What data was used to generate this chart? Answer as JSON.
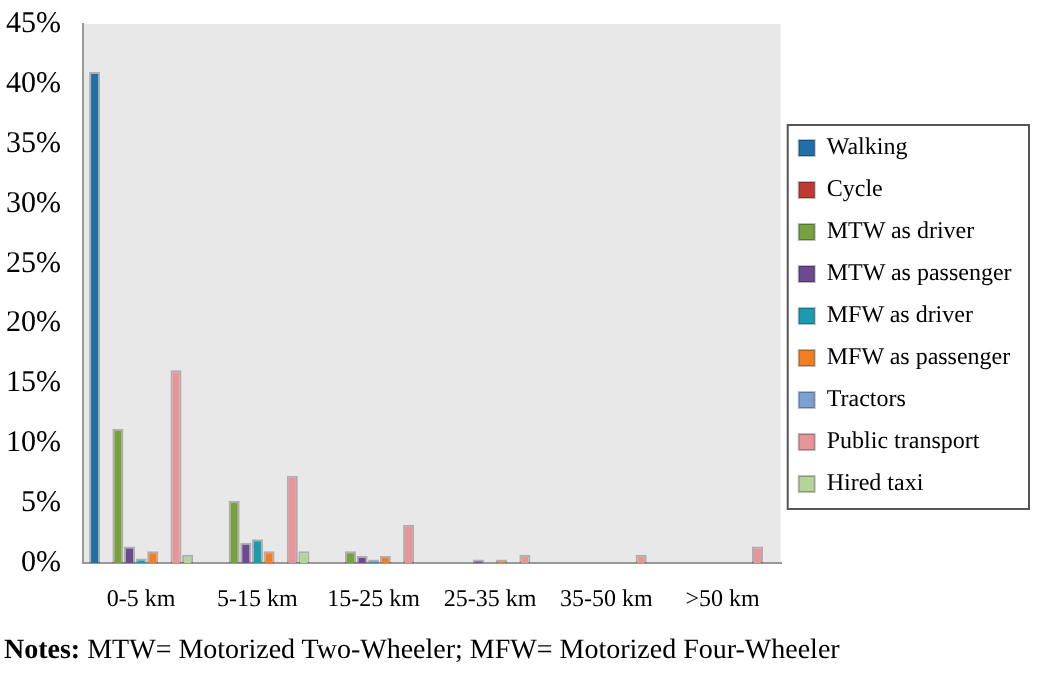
{
  "chart_data": {
    "type": "bar",
    "categories": [
      "0-5 km",
      "5-15 km",
      "15-25 km",
      "25-35 km",
      "35-50 km",
      ">50 km"
    ],
    "series": [
      {
        "name": "Walking",
        "color": "#1f6fa8",
        "values": [
          41,
          0,
          0,
          0,
          0,
          0
        ]
      },
      {
        "name": "Cycle",
        "color": "#be3a34",
        "values": [
          0,
          0,
          0,
          0,
          0,
          0
        ]
      },
      {
        "name": "MTW as driver",
        "color": "#77a03f",
        "values": [
          11.2,
          5.2,
          1,
          0,
          0,
          0
        ]
      },
      {
        "name": "MTW as passenger",
        "color": "#6b4a8f",
        "values": [
          1.4,
          1.7,
          0.6,
          0.3,
          0,
          0
        ]
      },
      {
        "name": "MFW as driver",
        "color": "#1a9bb0",
        "values": [
          0.4,
          2,
          0.3,
          0,
          0,
          0
        ]
      },
      {
        "name": "MFW as passenger",
        "color": "#f07f22",
        "values": [
          1,
          1,
          0.6,
          0.3,
          0,
          0
        ]
      },
      {
        "name": "Tractors",
        "color": "#7a9fd0",
        "values": [
          0,
          0,
          0,
          0,
          0,
          0
        ]
      },
      {
        "name": "Public transport",
        "color": "#e8959a",
        "values": [
          16.1,
          7.3,
          3.2,
          0.7,
          0.7,
          1.4
        ]
      },
      {
        "name": "Hired taxi",
        "color": "#b5d49a",
        "values": [
          0.7,
          1,
          0,
          0,
          0,
          0
        ]
      }
    ],
    "ylim": [
      0,
      45
    ],
    "yticks": [
      {
        "value": 0,
        "label": "0%"
      },
      {
        "value": 5,
        "label": "5%"
      },
      {
        "value": 10,
        "label": "10%"
      },
      {
        "value": 15,
        "label": "15%"
      },
      {
        "value": 20,
        "label": "20%"
      },
      {
        "value": 25,
        "label": "25%"
      },
      {
        "value": 30,
        "label": "30%"
      },
      {
        "value": 35,
        "label": "35%"
      },
      {
        "value": 40,
        "label": "40%"
      },
      {
        "value": 45,
        "label": "45%"
      }
    ],
    "grid": false,
    "legend": "right",
    "annotations": [
      "Notes: MTW= Motorized Two-Wheeler; MFW= Motorized Four-Wheeler"
    ]
  }
}
